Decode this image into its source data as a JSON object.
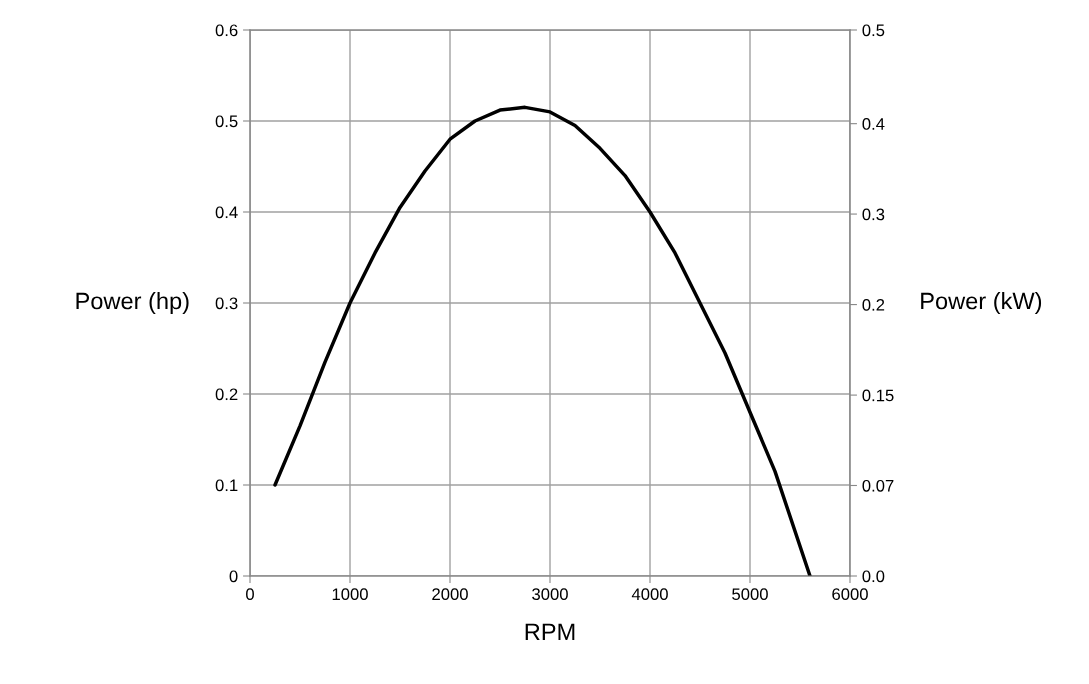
{
  "chart_data": {
    "type": "line",
    "xlabel": "RPM",
    "ylabel": "Power (hp)",
    "y2label": "Power (kW)",
    "x": [
      250,
      500,
      750,
      1000,
      1250,
      1500,
      1750,
      2000,
      2250,
      2500,
      2750,
      3000,
      3250,
      3500,
      3750,
      4000,
      4250,
      4500,
      4750,
      5000,
      5250,
      5600
    ],
    "series": [
      {
        "color": "#000000",
        "values": [
          0.1,
          0.165,
          0.235,
          0.3,
          0.355,
          0.405,
          0.445,
          0.48,
          0.5,
          0.512,
          0.515,
          0.51,
          0.495,
          0.47,
          0.44,
          0.4,
          0.355,
          0.3,
          0.245,
          0.18,
          0.115,
          0.0
        ]
      }
    ],
    "xlim": [
      0,
      6000
    ],
    "xticks": [
      0,
      1000,
      2000,
      3000,
      4000,
      5000,
      6000
    ],
    "ylim": [
      0,
      0.6
    ],
    "yticks": [
      0,
      0.1,
      0.2,
      0.3,
      0.4,
      0.5,
      0.6
    ],
    "y2lim": [
      0,
      0.45
    ],
    "y2ticks": [
      {
        "value": 0,
        "label": "0.0"
      },
      {
        "value": 0.0746,
        "label": "0.07"
      },
      {
        "value": 0.1491,
        "label": "0.15"
      },
      {
        "value": 0.2237,
        "label": "0.2"
      },
      {
        "value": 0.2983,
        "label": "0.3"
      },
      {
        "value": 0.3728,
        "label": "0.4"
      },
      {
        "value": 0.45,
        "label": "0.5"
      }
    ],
    "grid": true,
    "marker": "none",
    "line_style": "solid"
  }
}
